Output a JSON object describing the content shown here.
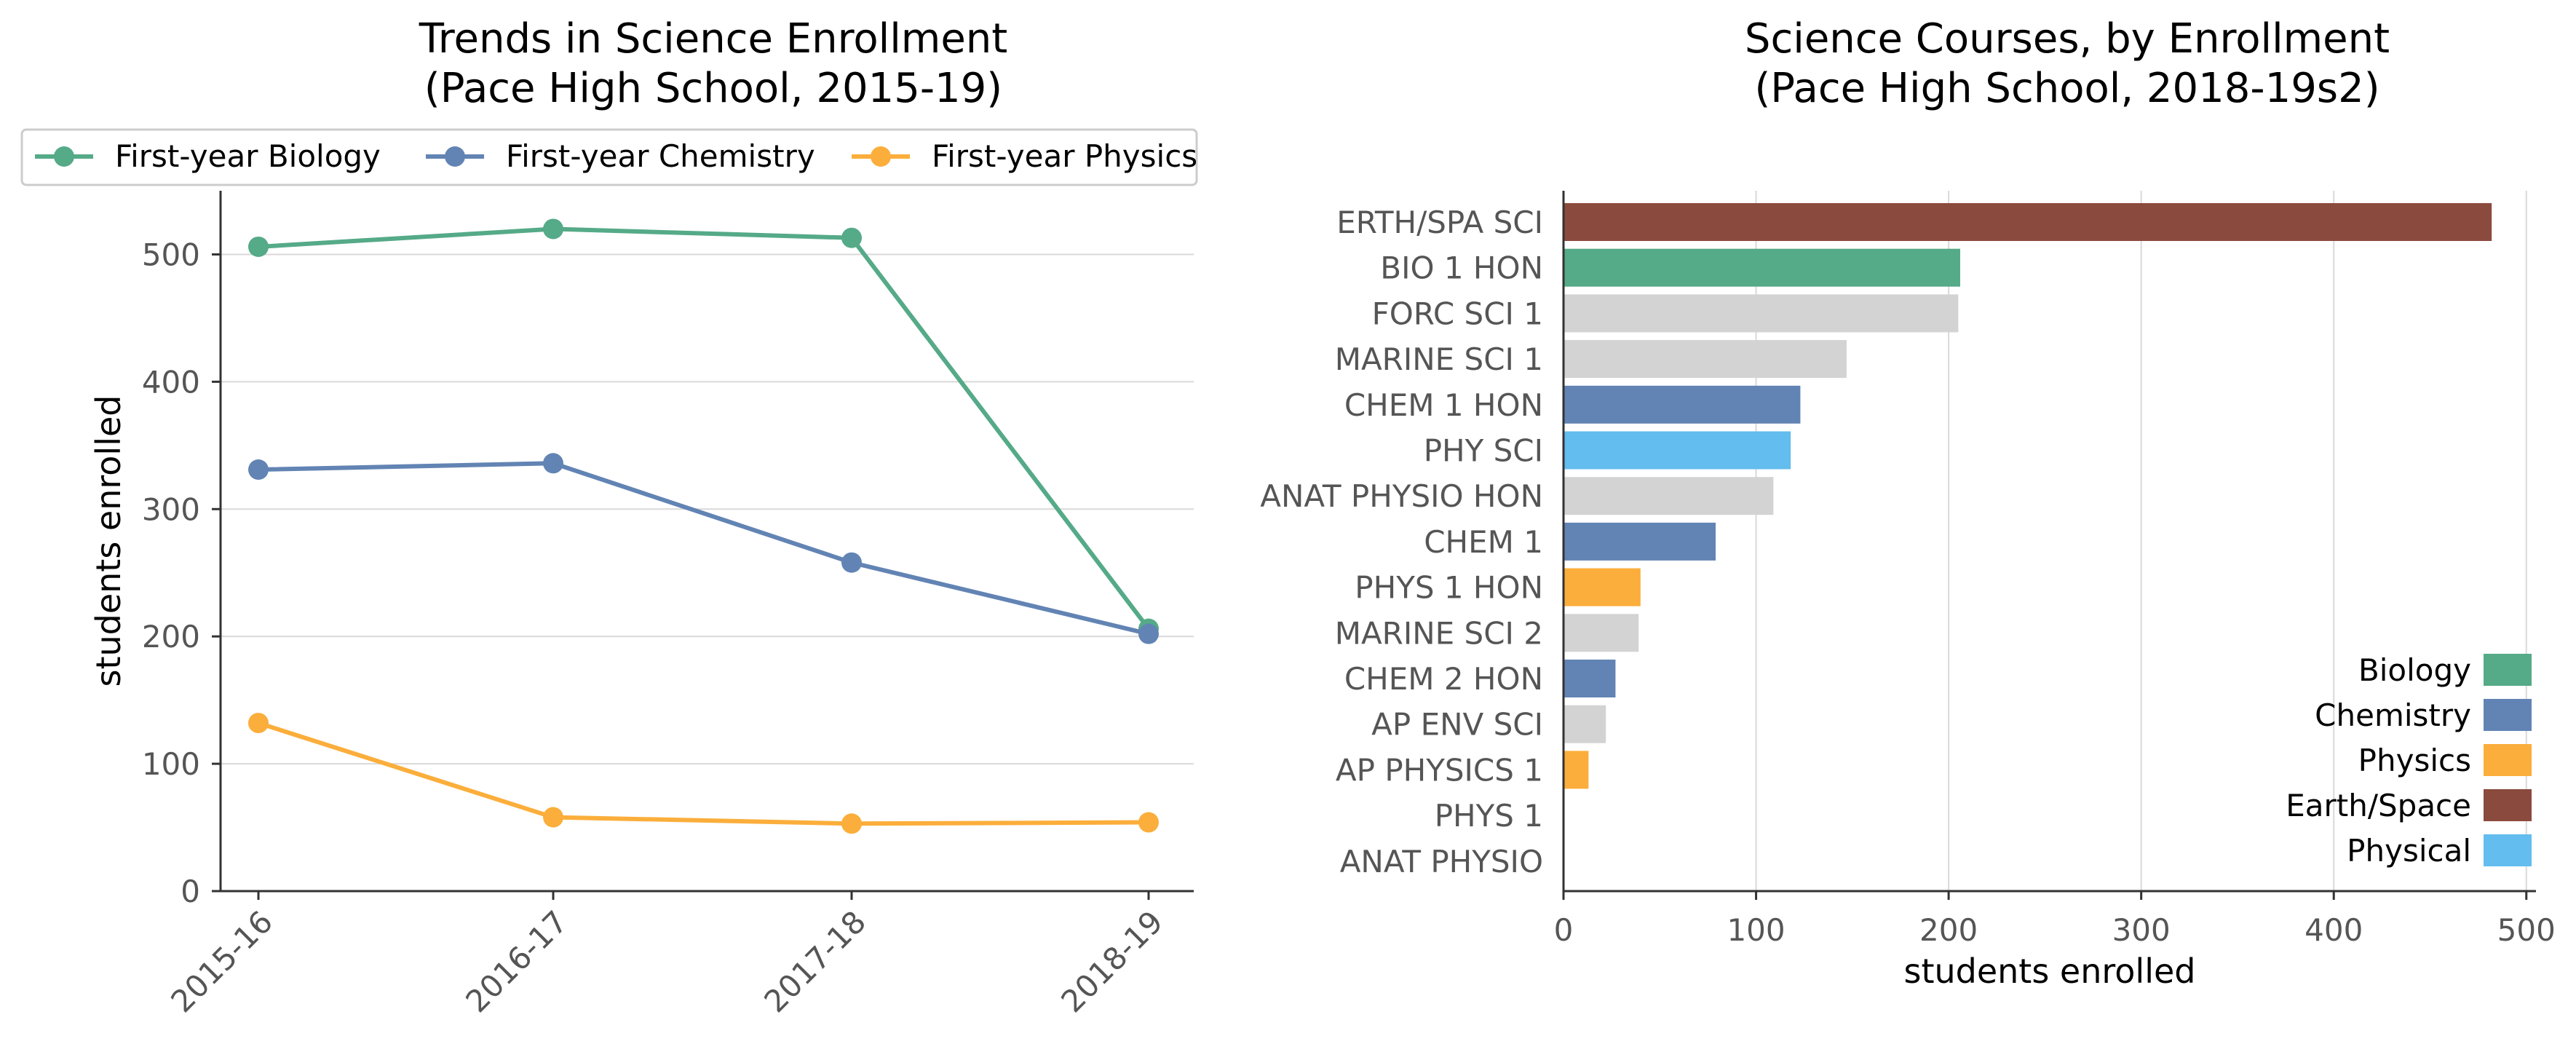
{
  "chart_data": [
    {
      "type": "line",
      "title": "Trends in Science Enrollment\n(Pace High School, 2015-19)",
      "xlabel": "",
      "ylabel": "students enrolled",
      "x": [
        "2015-16",
        "2016-17",
        "2017-18",
        "2018-19"
      ],
      "ylim": [
        0,
        550
      ],
      "yticks": [
        0,
        100,
        200,
        300,
        400,
        500
      ],
      "grid": "horizontal",
      "legend_position": "top",
      "series": [
        {
          "name": "First-year Biology",
          "color": "#55AA88",
          "values": [
            506,
            520,
            513,
            206
          ]
        },
        {
          "name": "First-year Chemistry",
          "color": "#6284B4",
          "values": [
            331,
            336,
            258,
            202
          ]
        },
        {
          "name": "First-year Physics",
          "color": "#FBAE3B",
          "values": [
            132,
            58,
            53,
            54
          ]
        }
      ]
    },
    {
      "type": "bar",
      "orientation": "horizontal",
      "title": "Science Courses, by Enrollment\n(Pace High School, 2018-19s2)",
      "xlabel": "students enrolled",
      "ylabel": "",
      "xlim": [
        0,
        505
      ],
      "xticks": [
        0,
        100,
        200,
        300,
        400,
        500
      ],
      "grid": "vertical",
      "legend_position": "lower right",
      "categories": [
        "ERTH/SPA SCI",
        "BIO 1 HON",
        "FORC SCI 1",
        "MARINE SCI 1",
        "CHEM 1 HON",
        "PHY SCI",
        "ANAT PHYSIO HON",
        "CHEM 1",
        "PHYS 1 HON",
        "MARINE SCI 2",
        "CHEM 2 HON",
        "AP ENV SCI",
        "AP PHYSICS 1",
        "PHYS 1",
        "ANAT PHYSIO"
      ],
      "values": [
        482,
        206,
        205,
        147,
        123,
        118,
        109,
        79,
        40,
        39,
        27,
        22,
        13,
        0,
        0
      ],
      "bar_groups": [
        "Earth/Space",
        "Biology",
        "Other",
        "Other",
        "Chemistry",
        "Physical",
        "Other",
        "Chemistry",
        "Physics",
        "Other",
        "Chemistry",
        "Other",
        "Physics",
        "Physics",
        "Other"
      ],
      "group_colors": {
        "Biology": "#55AA88",
        "Chemistry": "#6284B4",
        "Physics": "#FBAE3B",
        "Earth/Space": "#8B4A3E",
        "Physical": "#63BDEE",
        "Other": "#D3D3D3"
      },
      "legend": [
        "Biology",
        "Chemistry",
        "Physics",
        "Earth/Space",
        "Physical"
      ]
    }
  ]
}
